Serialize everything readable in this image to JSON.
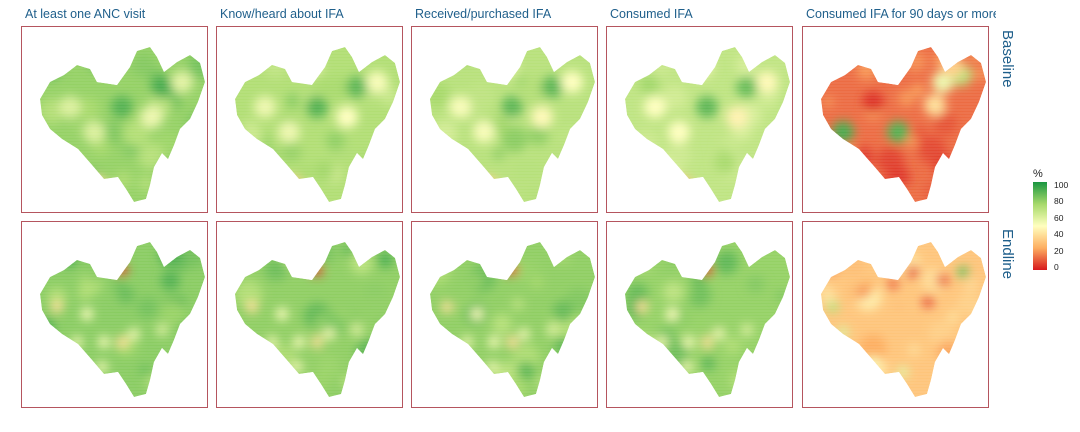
{
  "columns": [
    {
      "label": "At least one ANC visit"
    },
    {
      "label": "Know/heard about IFA"
    },
    {
      "label": "Received/purchased IFA"
    },
    {
      "label": "Consumed IFA"
    },
    {
      "label": "Consumed IFA for 90 days or more"
    }
  ],
  "rows": [
    {
      "label": "Baseline"
    },
    {
      "label": "Endline"
    }
  ],
  "legend": {
    "title": "%",
    "ticks": [
      "100",
      "80",
      "60",
      "40",
      "20",
      "0"
    ],
    "scale_colors": [
      "#1a9641",
      "#a6d96a",
      "#ffffbf",
      "#fdae61",
      "#d7191c"
    ]
  },
  "panels": [
    {
      "row": 0,
      "col": 0,
      "base": 78
    },
    {
      "row": 0,
      "col": 1,
      "base": 72
    },
    {
      "row": 0,
      "col": 2,
      "base": 70
    },
    {
      "row": 0,
      "col": 3,
      "base": 68
    },
    {
      "row": 0,
      "col": 4,
      "base": 14
    },
    {
      "row": 1,
      "col": 0,
      "base": 80
    },
    {
      "row": 1,
      "col": 1,
      "base": 79
    },
    {
      "row": 1,
      "col": 2,
      "base": 79
    },
    {
      "row": 1,
      "col": 3,
      "base": 78
    },
    {
      "row": 1,
      "col": 4,
      "base": 32
    }
  ]
}
